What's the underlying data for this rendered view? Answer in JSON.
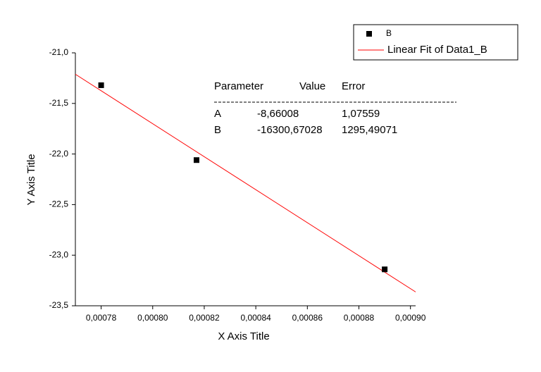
{
  "chart_data": {
    "type": "scatter",
    "x_label": "X Axis Title",
    "y_label": "Y Axis Title",
    "series": [
      {
        "name": "B",
        "color": "#000000",
        "x": [
          0.00078,
          0.000817,
          0.00089
        ],
        "values": [
          -21.32,
          -22.06,
          -23.14
        ]
      }
    ],
    "fit": {
      "name": "Linear Fit of Data1_B",
      "color": "#ff0000",
      "table": {
        "headers": [
          "Parameter",
          "Value",
          "Error"
        ],
        "rows": [
          [
            "A",
            {
              "value": -8.66008,
              "label": "-8,66008"
            },
            {
              "value": 1.07559,
              "label": "1,07559"
            }
          ],
          [
            "B",
            {
              "value": -16300.67028,
              "label": "-16300,67028"
            },
            {
              "value": 1295.49071,
              "label": "1295,49071"
            }
          ]
        ]
      }
    },
    "xlim": [
      0.00077,
      0.000902
    ],
    "ylim": [
      -23.5,
      -21.0
    ],
    "xticks": [
      {
        "value": 0.00078,
        "label": "0,00078"
      },
      {
        "value": 0.0008,
        "label": "0,00080"
      },
      {
        "value": 0.00082,
        "label": "0,00082"
      },
      {
        "value": 0.00084,
        "label": "0,00084"
      },
      {
        "value": 0.00086,
        "label": "0,00086"
      },
      {
        "value": 0.00088,
        "label": "0,00088"
      },
      {
        "value": 0.0009,
        "label": "0,00090"
      }
    ],
    "yticks": [
      {
        "value": -21.0,
        "label": "-21,0"
      },
      {
        "value": -21.5,
        "label": "-21,5"
      },
      {
        "value": -22.0,
        "label": "-22,0"
      },
      {
        "value": -22.5,
        "label": "-22,5"
      },
      {
        "value": -23.0,
        "label": "-23,0"
      },
      {
        "value": -23.5,
        "label": "-23,5"
      }
    ],
    "legend": "top-right"
  }
}
